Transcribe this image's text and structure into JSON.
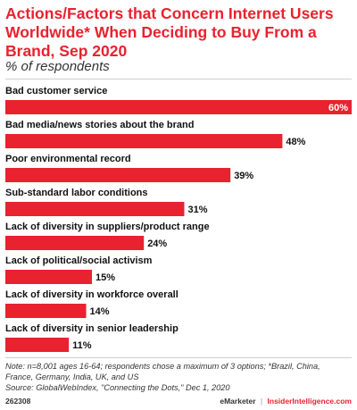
{
  "header": {
    "title": "Actions/Factors that Concern Internet Users Worldwide* When Deciding to Buy From a Brand, Sep 2020",
    "subtitle": "% of respondents"
  },
  "chart_data": {
    "type": "bar",
    "orientation": "horizontal",
    "categories": [
      "Bad customer service",
      "Bad media/news stories about the brand",
      "Poor environmental record",
      "Sub-standard labor conditions",
      "Lack of diversity in suppliers/product range",
      "Lack of political/social activism",
      "Lack of diversity in workforce overall",
      "Lack of diversity in senior leadership"
    ],
    "values": [
      60,
      48,
      39,
      31,
      24,
      15,
      14,
      11
    ],
    "value_labels": [
      "60%",
      "48%",
      "39%",
      "31%",
      "24%",
      "15%",
      "14%",
      "11%"
    ],
    "xlim": [
      0,
      60
    ],
    "bar_color": "#e8222f",
    "grid": false,
    "legend": "none"
  },
  "notes": {
    "line1": "Note: n=8,001 ages 16-64; respondents chose a maximum of 3 options; *Brazil, China,",
    "line2": "France, Germany, India, UK, and US",
    "line3": "Source: GlobalWebIndex, \"Connecting the Dots,\" Dec 1, 2020"
  },
  "footer": {
    "id": "262308",
    "brand": "eMarketer",
    "separator": "|",
    "site": "InsiderIntelligence.com"
  }
}
